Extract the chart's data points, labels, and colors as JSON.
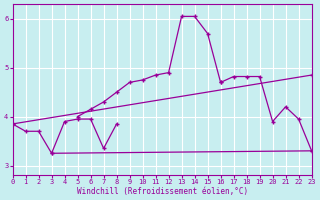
{
  "xlabel": "Windchill (Refroidissement éolien,°C)",
  "background_color": "#c8eef0",
  "line_color": "#990099",
  "grid_color": "#ffffff",
  "xlim": [
    0,
    23
  ],
  "ylim": [
    2.8,
    6.3
  ],
  "xticks": [
    0,
    1,
    2,
    3,
    4,
    5,
    6,
    7,
    8,
    9,
    10,
    11,
    12,
    13,
    14,
    15,
    16,
    17,
    18,
    19,
    20,
    21,
    22,
    23
  ],
  "yticks": [
    3,
    4,
    5,
    6
  ],
  "curve1_x": [
    0,
    1,
    2,
    3,
    4,
    5,
    6,
    7,
    8
  ],
  "curve1_y": [
    3.85,
    3.7,
    3.7,
    3.25,
    3.9,
    3.95,
    3.95,
    3.35,
    3.85
  ],
  "curve2_x": [
    5,
    6,
    7,
    8,
    9,
    10,
    11,
    12,
    13,
    14,
    15,
    16
  ],
  "curve2_y": [
    4.0,
    4.15,
    4.3,
    4.5,
    4.7,
    4.75,
    4.85,
    4.9,
    6.05,
    6.05,
    5.7,
    4.7
  ],
  "curve3_x": [
    0,
    23
  ],
  "curve3_y": [
    3.85,
    4.85
  ],
  "curve4_x": [
    3,
    23
  ],
  "curve4_y": [
    3.25,
    3.3
  ],
  "curve5_x": [
    16,
    17,
    18,
    19,
    20,
    21,
    22,
    23
  ],
  "curve5_y": [
    4.7,
    4.82,
    4.82,
    4.82,
    3.9,
    4.2,
    3.95,
    3.3
  ],
  "marker_color": "#990099"
}
